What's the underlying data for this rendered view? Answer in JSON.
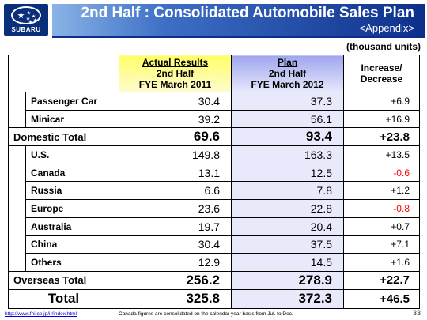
{
  "header": {
    "logo_text": "SUBARU",
    "title": "2nd Half : Consolidated Automobile Sales Plan",
    "subtitle": "<Appendix>"
  },
  "units": "(thousand units)",
  "columns": {
    "actual": [
      "Actual Results",
      "2nd Half",
      "FYE March 2011"
    ],
    "plan": [
      "Plan",
      "2nd Half",
      "FYE March 2012"
    ],
    "change": [
      "Increase/",
      "Decrease"
    ]
  },
  "domestic_rows": [
    {
      "label": "Passenger Car",
      "actual": "30.4",
      "plan": "37.3",
      "change": "+6.9"
    },
    {
      "label": "Minicar",
      "actual": "39.2",
      "plan": "56.1",
      "change": "+16.9"
    }
  ],
  "domestic_total": {
    "label": "Domestic Total",
    "actual": "69.6",
    "plan": "93.4",
    "change": "+23.8"
  },
  "overseas_rows": [
    {
      "label": "U.S.",
      "actual": "149.8",
      "plan": "163.3",
      "change": "+13.5"
    },
    {
      "label": "Canada",
      "actual": "13.1",
      "plan": "12.5",
      "change": "-0.6"
    },
    {
      "label": "Russia",
      "actual": "6.6",
      "plan": "7.8",
      "change": "+1.2"
    },
    {
      "label": "Europe",
      "actual": "23.6",
      "plan": "22.8",
      "change": "-0.8"
    },
    {
      "label": "Australia",
      "actual": "19.7",
      "plan": "20.4",
      "change": "+0.7"
    },
    {
      "label": "China",
      "actual": "30.4",
      "plan": "37.5",
      "change": "+7.1"
    },
    {
      "label": "Others",
      "actual": "12.9",
      "plan": "14.5",
      "change": "+1.6"
    }
  ],
  "overseas_total": {
    "label": "Overseas Total",
    "actual": "256.2",
    "plan": "278.9",
    "change": "+22.7"
  },
  "grand_total": {
    "label": "Total",
    "actual": "325.8",
    "plan": "372.3",
    "change": "+46.5"
  },
  "footer": {
    "url": "http://www.fhi.co.jp/ir/index.html",
    "note": "Canada figures are consolidated on the calendar year basis from Jul. to Dec.",
    "page": "33"
  },
  "colors": {
    "brand_blue": "#0d2f8c",
    "negative": "#ff0000",
    "actual_header": "#ffff66",
    "plan_header": "#9fa6ee"
  }
}
